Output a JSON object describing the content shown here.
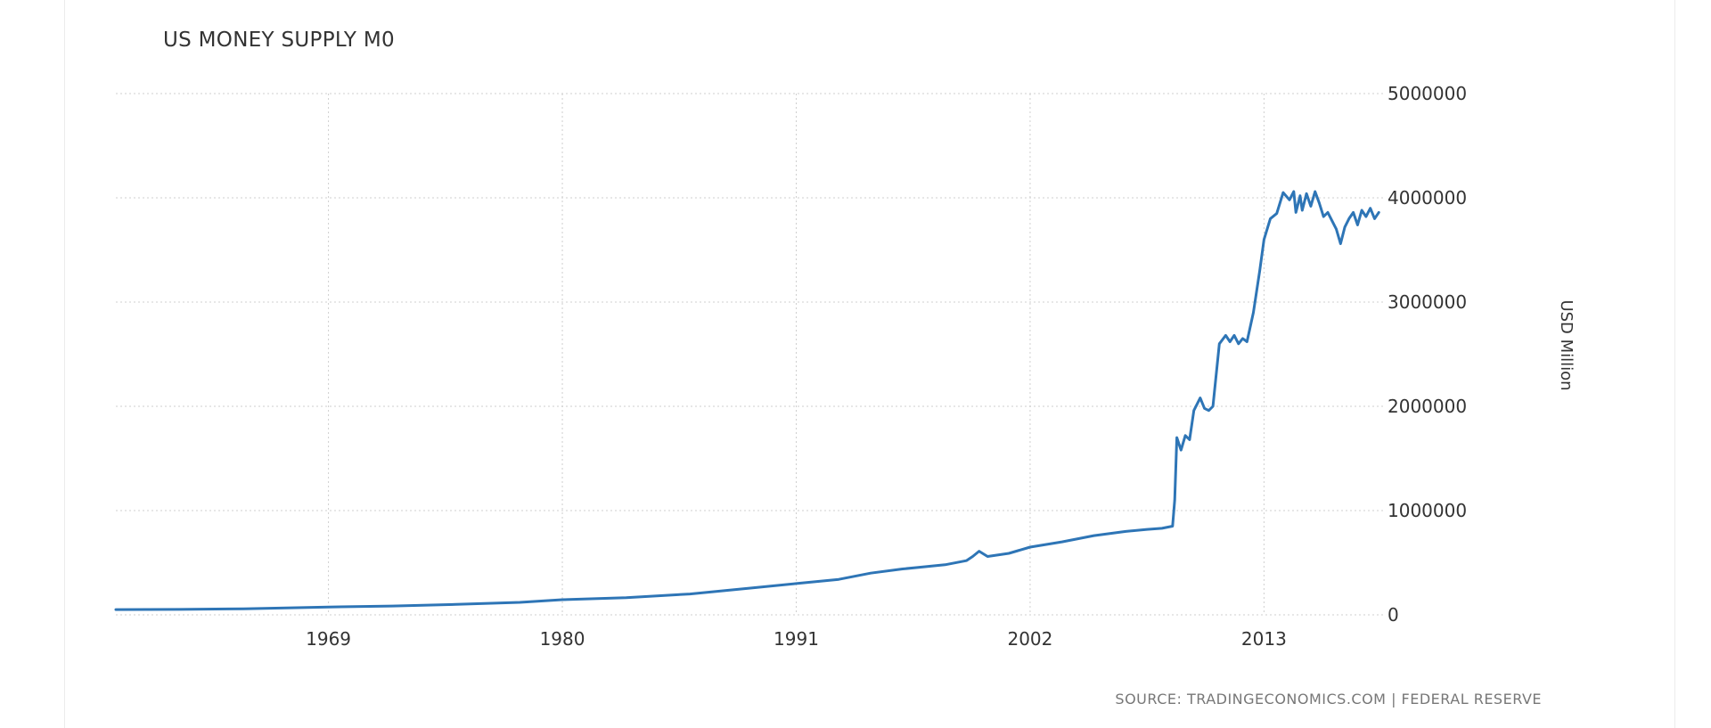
{
  "source": "SOURCE: TRADINGECONOMICS.COM | FEDERAL RESERVE",
  "colors": {
    "line": "#2e75b6",
    "grid": "#cfcfcf",
    "text": "#333333"
  },
  "chart_data": {
    "type": "line",
    "title": "US MONEY SUPPLY M0",
    "xlabel": "",
    "ylabel": "USD Million",
    "xlim": [
      1959.0,
      2018.6
    ],
    "ylim": [
      0,
      5000000
    ],
    "x_ticks": [
      1969,
      1980,
      1991,
      2002,
      2013
    ],
    "y_ticks": [
      0,
      1000000,
      2000000,
      3000000,
      4000000,
      5000000
    ],
    "x_tick_labels": [
      "1969",
      "1980",
      "1991",
      "2002",
      "2013"
    ],
    "y_tick_labels": [
      "0",
      "1000000",
      "2000000",
      "3000000",
      "4000000",
      "5000000"
    ],
    "grid": true,
    "legend": "none",
    "series": [
      {
        "x": [
          1959.0,
          1962.0,
          1965.0,
          1969.0,
          1972.0,
          1975.0,
          1978.0,
          1980.0,
          1983.0,
          1986.0,
          1989.0,
          1991.0,
          1993.0,
          1994.5,
          1996.0,
          1998.0,
          1999.0,
          1999.3,
          1999.6,
          2000.0,
          2001.0,
          2002.0,
          2003.5,
          2005.0,
          2006.5,
          2007.5,
          2008.2,
          2008.7,
          2008.8,
          2008.9,
          2009.1,
          2009.3,
          2009.5,
          2009.7,
          2010.0,
          2010.2,
          2010.4,
          2010.6,
          2010.9,
          2011.2,
          2011.4,
          2011.6,
          2011.8,
          2012.0,
          2012.2,
          2012.5,
          2012.8,
          2013.0,
          2013.3,
          2013.6,
          2013.9,
          2014.2,
          2014.4,
          2014.5,
          2014.7,
          2014.8,
          2015.0,
          2015.2,
          2015.4,
          2015.6,
          2015.8,
          2016.0,
          2016.2,
          2016.4,
          2016.6,
          2016.8,
          2017.0,
          2017.2,
          2017.4,
          2017.6,
          2017.8,
          2018.0,
          2018.2,
          2018.4
        ],
        "y": [
          50000,
          52000,
          58000,
          75000,
          85000,
          100000,
          120000,
          145000,
          165000,
          200000,
          260000,
          300000,
          340000,
          400000,
          440000,
          480000,
          520000,
          560000,
          610000,
          560000,
          590000,
          650000,
          700000,
          760000,
          800000,
          820000,
          830000,
          850000,
          1100000,
          1700000,
          1580000,
          1720000,
          1680000,
          1960000,
          2080000,
          1980000,
          1960000,
          2000000,
          2600000,
          2680000,
          2620000,
          2680000,
          2600000,
          2650000,
          2620000,
          2900000,
          3300000,
          3600000,
          3800000,
          3850000,
          4050000,
          3980000,
          4060000,
          3860000,
          4020000,
          3880000,
          4040000,
          3920000,
          4060000,
          3950000,
          3820000,
          3860000,
          3780000,
          3700000,
          3560000,
          3720000,
          3800000,
          3860000,
          3740000,
          3880000,
          3820000,
          3900000,
          3800000,
          3860000
        ]
      }
    ]
  }
}
